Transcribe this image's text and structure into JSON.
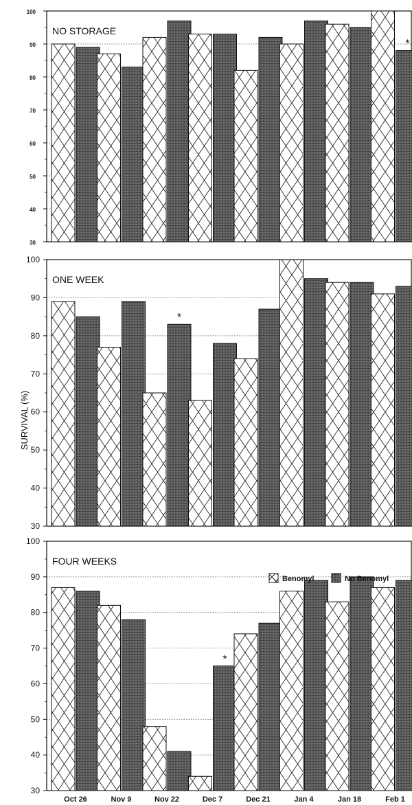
{
  "chart_data": {
    "type": "bar",
    "ylabel": "SURVIVAL (%)",
    "ylim": [
      30,
      100
    ],
    "yticks": [
      "30",
      "40",
      "50",
      "60",
      "70",
      "80",
      "90",
      "100"
    ],
    "categories": [
      "Oct 26",
      "Nov 9",
      "Nov 22",
      "Dec 7",
      "Dec 21",
      "Jan 4",
      "Jan 18",
      "Feb 1"
    ],
    "legend": {
      "placement": "top-right",
      "items": [
        "Benomyl",
        "No Benomyl"
      ]
    },
    "grid": "dotted horizontal",
    "panels": [
      {
        "title": "NO STORAGE",
        "series": [
          {
            "name": "Benomyl",
            "values": [
              90,
              87,
              92,
              93,
              82,
              90,
              96,
              100
            ]
          },
          {
            "name": "No Benomyl",
            "values": [
              89,
              83,
              97,
              93,
              92,
              97,
              95,
              88
            ]
          }
        ],
        "significant": [
          "",
          "",
          "",
          "",
          "",
          "",
          "",
          "*"
        ]
      },
      {
        "title": "ONE WEEK",
        "series": [
          {
            "name": "Benomyl",
            "values": [
              89,
              77,
              65,
              63,
              74,
              100,
              94,
              91
            ]
          },
          {
            "name": "No Benomyl",
            "values": [
              85,
              89,
              83,
              78,
              87,
              95,
              94,
              93
            ]
          }
        ],
        "significant": [
          "",
          "",
          "*",
          "",
          "",
          "",
          "",
          ""
        ]
      },
      {
        "title": "FOUR WEEKS",
        "series": [
          {
            "name": "Benomyl",
            "values": [
              87,
              82,
              48,
              34,
              74,
              86,
              83,
              87
            ]
          },
          {
            "name": "No Benomyl",
            "values": [
              86,
              78,
              41,
              65,
              77,
              89,
              90,
              89
            ]
          }
        ],
        "significant": [
          "",
          "",
          "",
          "*",
          "",
          "",
          "",
          ""
        ]
      }
    ]
  }
}
